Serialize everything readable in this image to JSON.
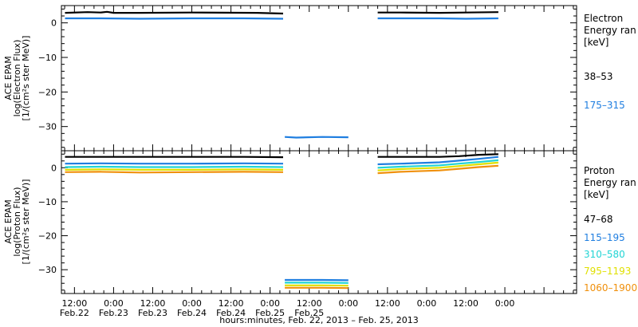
{
  "chart_data": [
    {
      "type": "line",
      "ylabel_lines": [
        "ACE EPAM",
        "log(Electron Flux)",
        "[1/(cm²s ster MeV)]"
      ],
      "yticks": [
        "0",
        "−10",
        "−20",
        "−30"
      ],
      "ylim": [
        -37,
        5
      ],
      "legend_title": [
        "Electron",
        "Energy ran",
        "[keV]"
      ],
      "series": [
        {
          "name": "38–53",
          "color": "#000000",
          "x": [
            9.1,
            16,
            20,
            22,
            24,
            32,
            48,
            68,
            76,
            76.4,
            96,
            104,
            105,
            112,
            124,
            132,
            142,
            142.6
          ],
          "y": [
            2.9,
            3.1,
            3.0,
            3.2,
            2.9,
            2.9,
            3.0,
            2.9,
            2.7,
            null,
            null,
            null,
            3.0,
            3.0,
            2.9,
            3.0,
            3.1,
            null
          ]
        },
        {
          "name": "175–315",
          "color": "#1f7ee0",
          "x": [
            9.1,
            20,
            32,
            48,
            64,
            76,
            76.4,
            76.5,
            80,
            88,
            96,
            96.4,
            105,
            112,
            124,
            132,
            142,
            142.6
          ],
          "y": [
            1.3,
            1.3,
            1.2,
            1.3,
            1.3,
            1.2,
            null,
            -33.0,
            -33.2,
            -33.0,
            -33.1,
            null,
            1.3,
            1.3,
            1.3,
            1.2,
            1.3,
            null
          ]
        }
      ]
    },
    {
      "type": "line",
      "ylabel_lines": [
        "ACE EPAM",
        "log(Proton Flux)",
        "[1/(cm²s ster MeV)]"
      ],
      "yticks": [
        "0",
        "−10",
        "−20",
        "−30"
      ],
      "ylim": [
        -37,
        5
      ],
      "legend_title": [
        "Proton",
        "Energy ran",
        "[keV]"
      ],
      "series": [
        {
          "name": "47–68",
          "color": "#000000",
          "x": [
            9.1,
            20,
            32,
            48,
            64,
            76,
            76.4,
            105,
            112,
            124,
            130,
            136,
            142,
            142.6
          ],
          "y": [
            3.2,
            3.2,
            3.2,
            3.2,
            3.2,
            3.1,
            null,
            3.2,
            3.2,
            3.2,
            3.4,
            3.8,
            4.0,
            null
          ]
        },
        {
          "name": "115–195",
          "color": "#1f7ee0",
          "x": [
            9.1,
            20,
            32,
            48,
            64,
            76,
            76.4,
            76.5,
            88,
            96,
            96.4,
            105,
            112,
            124,
            130,
            136,
            142,
            142.6
          ],
          "y": [
            1.2,
            1.3,
            1.2,
            1.2,
            1.3,
            1.2,
            null,
            -33.0,
            -33.0,
            -33.1,
            null,
            1.0,
            1.2,
            1.6,
            2.1,
            2.6,
            3.2,
            null
          ]
        },
        {
          "name": "310–580",
          "color": "#22d4d4",
          "x": [
            9.1,
            20,
            32,
            48,
            64,
            76,
            76.4,
            76.5,
            88,
            96,
            96.4,
            105,
            112,
            124,
            130,
            136,
            142,
            142.6
          ],
          "y": [
            0.2,
            0.3,
            0.2,
            0.2,
            0.3,
            0.2,
            null,
            -33.8,
            -33.8,
            -33.9,
            null,
            0.0,
            0.3,
            0.7,
            1.2,
            1.7,
            2.2,
            null
          ]
        },
        {
          "name": "795–1193",
          "color": "#e0e000",
          "x": [
            9.1,
            20,
            32,
            48,
            64,
            76,
            76.4,
            76.5,
            88,
            96,
            96.4,
            105,
            112,
            124,
            130,
            136,
            142,
            142.6
          ],
          "y": [
            -0.6,
            -0.5,
            -0.6,
            -0.6,
            -0.5,
            -0.6,
            null,
            -34.6,
            -34.6,
            -34.7,
            null,
            -0.8,
            -0.4,
            0.0,
            0.5,
            1.0,
            1.5,
            null
          ]
        },
        {
          "name": "1060–1900",
          "color": "#f0900c",
          "x": [
            9.1,
            20,
            32,
            48,
            64,
            76,
            76.4,
            76.5,
            88,
            96,
            96.4,
            105,
            112,
            124,
            130,
            136,
            142,
            142.6
          ],
          "y": [
            -1.3,
            -1.2,
            -1.4,
            -1.3,
            -1.2,
            -1.3,
            null,
            -35.3,
            -35.3,
            -35.4,
            null,
            -1.6,
            -1.2,
            -0.8,
            -0.3,
            0.2,
            0.6,
            null
          ]
        }
      ]
    }
  ],
  "xaxis": {
    "tick_hours": [
      12,
      24,
      36,
      48,
      60,
      72,
      84,
      96,
      108,
      120,
      132,
      144
    ],
    "label_hours": [
      12,
      24,
      36,
      48,
      60,
      72,
      84,
      96,
      108,
      120,
      132,
      144
    ],
    "time_labels": [
      "12:00",
      "0:00",
      "12:00",
      "0:00",
      "12:00",
      "0:00",
      "12:00",
      "0:00",
      "12:00",
      "0:00",
      "12:00",
      "0:00"
    ],
    "date_labels": [
      "Feb.22",
      "Feb.23",
      "Feb.23",
      "Feb.24",
      "Feb.24",
      "Feb.25",
      "Feb.25",
      "",
      "",
      "",
      "",
      ""
    ],
    "xlim": [
      8,
      166
    ],
    "title": "hours:minutes, Feb. 22, 2013 – Feb. 25, 2013"
  }
}
